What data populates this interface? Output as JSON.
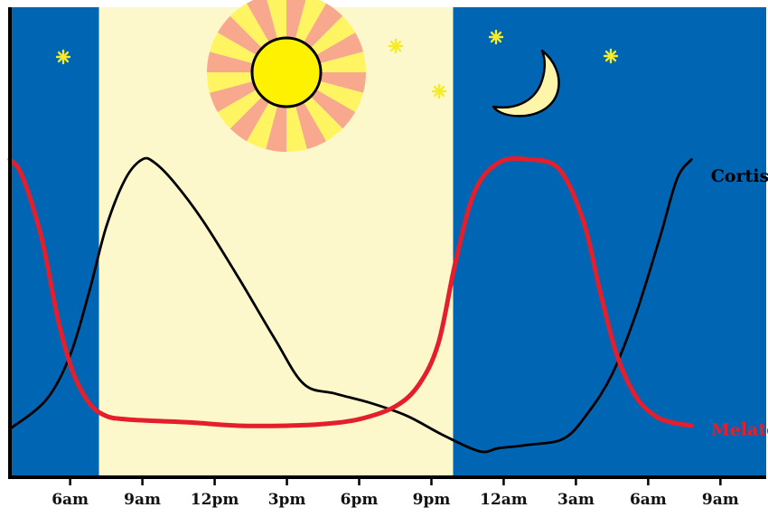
{
  "chart_data": {
    "type": "line",
    "title": "",
    "xlabel": "",
    "ylabel": "",
    "x_unit": "hours",
    "x_ticks": [
      {
        "label": "6am",
        "x": 6
      },
      {
        "label": "9am",
        "x": 9
      },
      {
        "label": "12pm",
        "x": 12
      },
      {
        "label": "3pm",
        "x": 15
      },
      {
        "label": "6pm",
        "x": 18
      },
      {
        "label": "9pm",
        "x": 21
      },
      {
        "label": "12am",
        "x": 24
      },
      {
        "label": "3am",
        "x": 27
      },
      {
        "label": "6am",
        "x": 30
      },
      {
        "label": "9am",
        "x": 33
      }
    ],
    "xlim": [
      3.5,
      34.9
    ],
    "ylim": [
      0,
      1
    ],
    "y_axis_labeled": false,
    "grid": false,
    "background_bands": [
      {
        "name": "night",
        "start": 3.5,
        "end": 7.2,
        "color": "#0066b3"
      },
      {
        "name": "day",
        "start": 7.2,
        "end": 21.9,
        "color": "#fdf8cc"
      },
      {
        "name": "night",
        "start": 21.9,
        "end": 34.9,
        "color": "#0066b3"
      }
    ],
    "series": [
      {
        "name": "Cortisol",
        "color": "#000000",
        "x": [
          3.5,
          5.0,
          6.0,
          6.8,
          7.5,
          8.3,
          9.0,
          9.5,
          10.3,
          11.5,
          13.0,
          14.5,
          15.7,
          17.0,
          18.5,
          20.0,
          21.5,
          23.0,
          23.8,
          25.0,
          26.5,
          27.5,
          28.5,
          29.5,
          30.5,
          31.2,
          31.8
        ],
        "y": [
          0.1,
          0.19,
          0.33,
          0.53,
          0.73,
          0.88,
          0.94,
          0.93,
          0.87,
          0.75,
          0.57,
          0.38,
          0.24,
          0.21,
          0.18,
          0.14,
          0.08,
          0.03,
          0.04,
          0.05,
          0.07,
          0.15,
          0.27,
          0.46,
          0.7,
          0.88,
          0.94
        ],
        "label_x": 32.6,
        "label_y": 0.89
      },
      {
        "name": "Melatonin",
        "color": "#e51e2c",
        "x": [
          3.5,
          4.0,
          4.8,
          5.5,
          6.1,
          6.8,
          7.5,
          8.3,
          9.5,
          11.0,
          13.0,
          15.0,
          16.5,
          18.0,
          19.5,
          20.5,
          21.3,
          22.0,
          22.8,
          23.8,
          25.0,
          26.3,
          27.3,
          28.0,
          28.7,
          29.5,
          30.3,
          31.0,
          31.8
        ],
        "y": [
          0.94,
          0.89,
          0.7,
          0.44,
          0.28,
          0.18,
          0.14,
          0.13,
          0.125,
          0.12,
          0.11,
          0.11,
          0.115,
          0.13,
          0.17,
          0.24,
          0.37,
          0.62,
          0.84,
          0.93,
          0.94,
          0.91,
          0.75,
          0.53,
          0.33,
          0.2,
          0.14,
          0.12,
          0.11
        ],
        "label_x": 32.6,
        "label_y": 0.1
      }
    ]
  },
  "decorations": {
    "sun_icon": {
      "core": "#fff200",
      "ray_light": "#fff563",
      "ray_dark": "#f7a88d"
    },
    "moon_icon": {
      "fill": "#fff5a8"
    },
    "star_icon": {
      "fill": "#f5ec27"
    }
  }
}
